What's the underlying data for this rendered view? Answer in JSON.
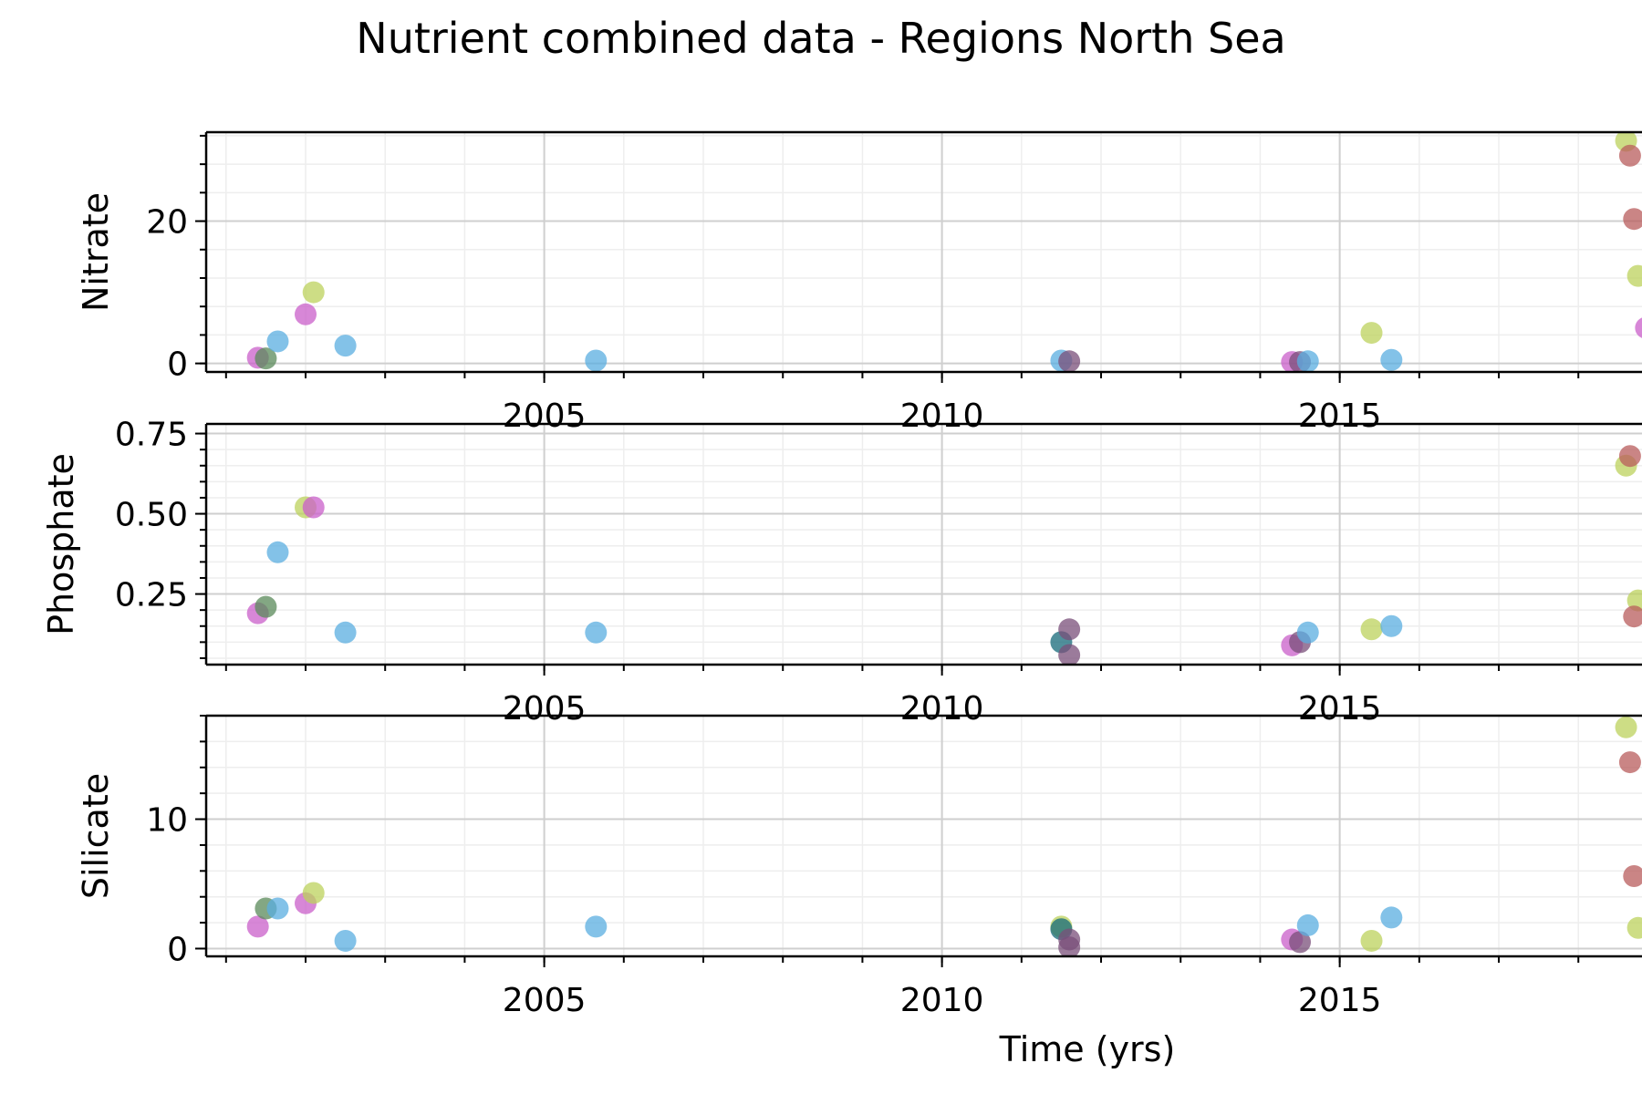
{
  "chart_data": {
    "type": "scatter",
    "title": "Nutrient combined data - Regions North Sea",
    "xlabel": "Time (yrs)",
    "xlim": [
      2000.75,
      2018.8
    ],
    "x_ticks": [
      2005,
      2010,
      2015
    ],
    "grid": true,
    "point_colors": [
      "#bcd25c",
      "#c95fc9",
      "#5aaee0",
      "#5a8a5a",
      "#b85c5c",
      "#7a4f7a",
      "#156a7a"
    ],
    "panels": [
      {
        "ylabel": "Nitrate",
        "ylim": [
          -1.2,
          32.5
        ],
        "y_ticks": [
          0,
          20
        ],
        "y_tick_labels": [
          "0",
          "20"
        ],
        "points": [
          {
            "x": 2001.4,
            "y": 0.8,
            "c": 1
          },
          {
            "x": 2001.5,
            "y": 0.7,
            "c": 3
          },
          {
            "x": 2001.65,
            "y": 3.1,
            "c": 2
          },
          {
            "x": 2002.0,
            "y": 6.9,
            "c": 1
          },
          {
            "x": 2002.1,
            "y": 10.0,
            "c": 0
          },
          {
            "x": 2002.5,
            "y": 2.5,
            "c": 2
          },
          {
            "x": 2005.65,
            "y": 0.4,
            "c": 2
          },
          {
            "x": 2011.5,
            "y": 0.4,
            "c": 2
          },
          {
            "x": 2011.6,
            "y": 0.3,
            "c": 5
          },
          {
            "x": 2014.4,
            "y": 0.2,
            "c": 1
          },
          {
            "x": 2014.5,
            "y": 0.2,
            "c": 5
          },
          {
            "x": 2014.6,
            "y": 0.3,
            "c": 2
          },
          {
            "x": 2015.4,
            "y": 4.3,
            "c": 0
          },
          {
            "x": 2015.65,
            "y": 0.5,
            "c": 2
          },
          {
            "x": 2018.6,
            "y": 31.3,
            "c": 0
          },
          {
            "x": 2018.65,
            "y": 29.2,
            "c": 4
          },
          {
            "x": 2018.7,
            "y": 20.3,
            "c": 4
          },
          {
            "x": 2018.75,
            "y": 12.3,
            "c": 0
          },
          {
            "x": 2018.85,
            "y": 5.0,
            "c": 1
          }
        ]
      },
      {
        "ylabel": "Phosphate",
        "ylim": [
          0.03,
          0.78
        ],
        "y_ticks": [
          0.25,
          0.5,
          0.75
        ],
        "y_tick_labels": [
          "0.25",
          "0.50",
          "0.75"
        ],
        "points": [
          {
            "x": 2001.4,
            "y": 0.19,
            "c": 1
          },
          {
            "x": 2001.5,
            "y": 0.21,
            "c": 3
          },
          {
            "x": 2001.65,
            "y": 0.38,
            "c": 2
          },
          {
            "x": 2002.0,
            "y": 0.52,
            "c": 0
          },
          {
            "x": 2002.1,
            "y": 0.52,
            "c": 1
          },
          {
            "x": 2002.5,
            "y": 0.13,
            "c": 2
          },
          {
            "x": 2005.65,
            "y": 0.13,
            "c": 2
          },
          {
            "x": 2011.5,
            "y": 0.1,
            "c": 6
          },
          {
            "x": 2011.6,
            "y": 0.14,
            "c": 5
          },
          {
            "x": 2011.6,
            "y": 0.06,
            "c": 5
          },
          {
            "x": 2014.4,
            "y": 0.09,
            "c": 1
          },
          {
            "x": 2014.5,
            "y": 0.1,
            "c": 5
          },
          {
            "x": 2014.6,
            "y": 0.13,
            "c": 2
          },
          {
            "x": 2015.4,
            "y": 0.14,
            "c": 0
          },
          {
            "x": 2015.65,
            "y": 0.15,
            "c": 2
          },
          {
            "x": 2018.6,
            "y": 0.65,
            "c": 0
          },
          {
            "x": 2018.65,
            "y": 0.68,
            "c": 4
          },
          {
            "x": 2018.75,
            "y": 0.23,
            "c": 0
          },
          {
            "x": 2018.7,
            "y": 0.18,
            "c": 4
          }
        ]
      },
      {
        "ylabel": "Silicate",
        "ylim": [
          -0.6,
          18.0
        ],
        "y_ticks": [
          0,
          10
        ],
        "y_tick_labels": [
          "0",
          "10"
        ],
        "points": [
          {
            "x": 2001.4,
            "y": 1.7,
            "c": 1
          },
          {
            "x": 2001.5,
            "y": 3.1,
            "c": 3
          },
          {
            "x": 2001.65,
            "y": 3.1,
            "c": 2
          },
          {
            "x": 2002.0,
            "y": 3.5,
            "c": 1
          },
          {
            "x": 2002.1,
            "y": 4.3,
            "c": 0
          },
          {
            "x": 2002.5,
            "y": 0.6,
            "c": 2
          },
          {
            "x": 2005.65,
            "y": 1.7,
            "c": 2
          },
          {
            "x": 2011.5,
            "y": 1.7,
            "c": 0
          },
          {
            "x": 2011.5,
            "y": 1.5,
            "c": 6
          },
          {
            "x": 2011.6,
            "y": 0.7,
            "c": 5
          },
          {
            "x": 2011.6,
            "y": 0.1,
            "c": 5
          },
          {
            "x": 2014.4,
            "y": 0.7,
            "c": 1
          },
          {
            "x": 2014.5,
            "y": 0.5,
            "c": 5
          },
          {
            "x": 2014.6,
            "y": 1.8,
            "c": 2
          },
          {
            "x": 2015.4,
            "y": 0.6,
            "c": 0
          },
          {
            "x": 2015.65,
            "y": 2.4,
            "c": 2
          },
          {
            "x": 2018.6,
            "y": 17.1,
            "c": 0
          },
          {
            "x": 2018.65,
            "y": 14.4,
            "c": 4
          },
          {
            "x": 2018.7,
            "y": 5.6,
            "c": 4
          },
          {
            "x": 2018.75,
            "y": 1.6,
            "c": 0
          }
        ]
      }
    ]
  }
}
